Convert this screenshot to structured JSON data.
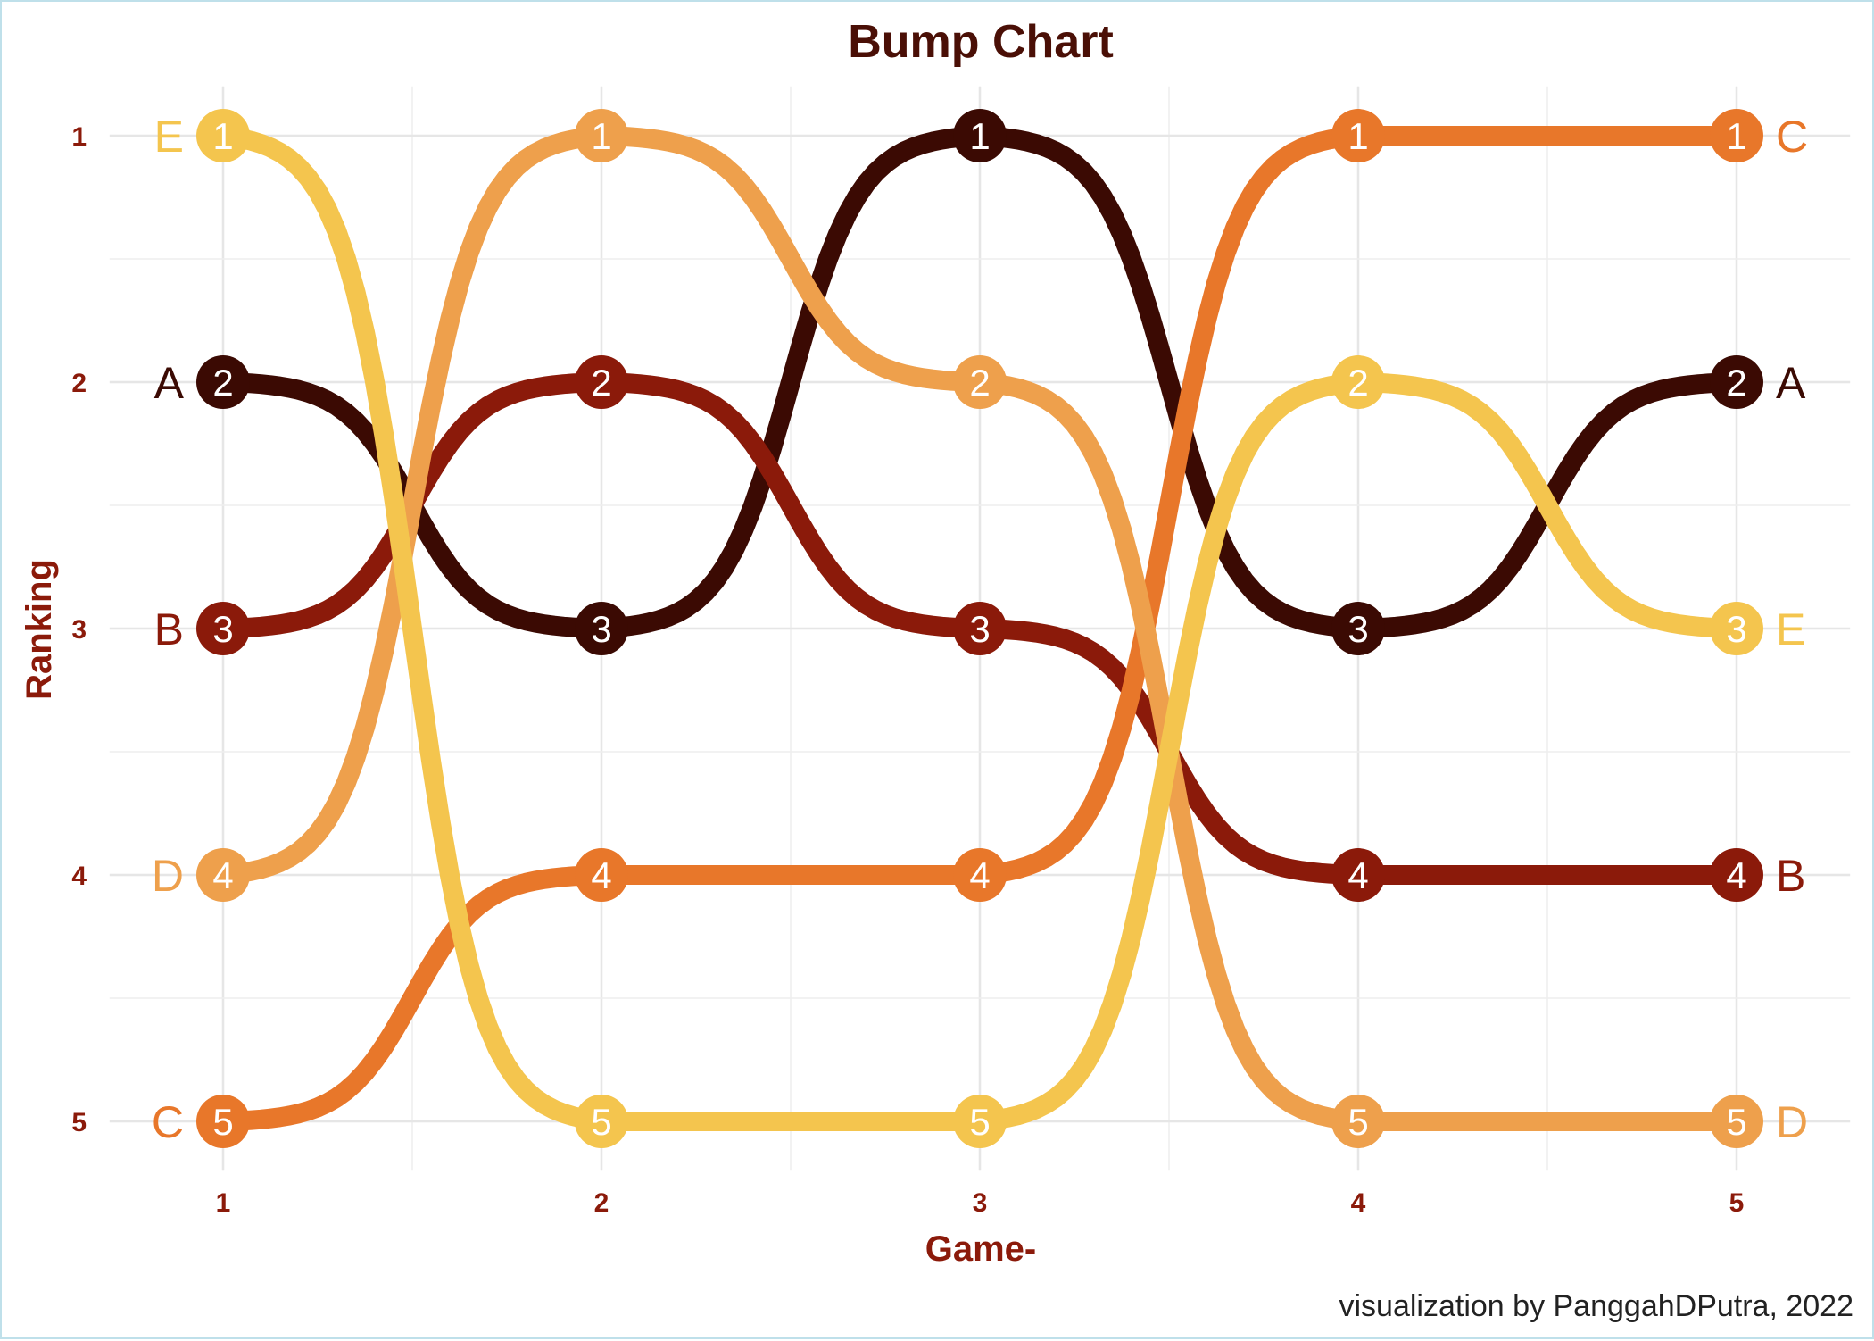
{
  "chart_data": {
    "type": "line",
    "subtype": "bump",
    "title": "Bump Chart",
    "xlabel": "Game-",
    "ylabel": "Ranking",
    "caption": "visualization by PanggahDPutra, 2022",
    "x": [
      1,
      2,
      3,
      4,
      5
    ],
    "x_ticks": [
      "1",
      "2",
      "3",
      "4",
      "5"
    ],
    "y_ticks": [
      "1",
      "2",
      "3",
      "4",
      "5"
    ],
    "xlim": [
      0.7,
      5.3
    ],
    "ylim": [
      5.2,
      0.8
    ],
    "y_reversed": true,
    "grid": true,
    "legend": "none",
    "series": [
      {
        "name": "A",
        "color": "#3b0a03",
        "values": [
          2,
          3,
          1,
          3,
          2
        ]
      },
      {
        "name": "B",
        "color": "#8b1a0a",
        "values": [
          3,
          2,
          3,
          4,
          4
        ]
      },
      {
        "name": "C",
        "color": "#e8772a",
        "values": [
          5,
          4,
          4,
          1,
          1
        ]
      },
      {
        "name": "D",
        "color": "#eea04c",
        "values": [
          4,
          1,
          2,
          5,
          5
        ]
      },
      {
        "name": "E",
        "color": "#f4c54e",
        "values": [
          1,
          5,
          5,
          2,
          3
        ]
      }
    ]
  }
}
